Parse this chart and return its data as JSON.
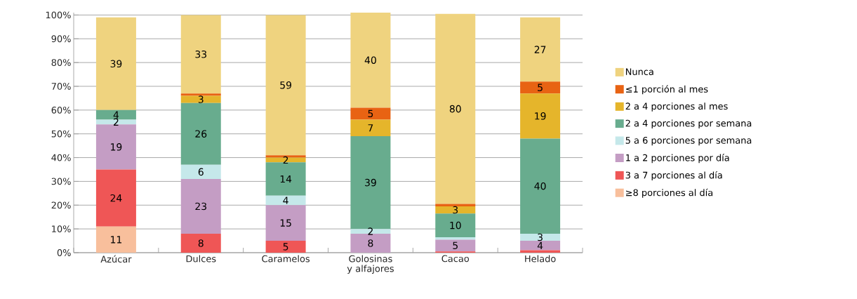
{
  "chart_data": {
    "type": "bar",
    "stacked": true,
    "categories": [
      "Azúcar",
      "Dulces",
      "Caramelos",
      "Golosinas y alfajores",
      "Cacao",
      "Helado"
    ],
    "ylim": [
      0,
      101
    ],
    "yticks": [
      {
        "value": 0,
        "label": "0%"
      },
      {
        "value": 10,
        "label": "10%"
      },
      {
        "value": 20,
        "label": "20%"
      },
      {
        "value": 30,
        "label": "30%"
      },
      {
        "value": 40,
        "label": "40%"
      },
      {
        "value": 50,
        "label": "50%"
      },
      {
        "value": 60,
        "label": "60%"
      },
      {
        "value": 70,
        "label": "70%"
      },
      {
        "value": 80,
        "label": "80%"
      },
      {
        "value": 90,
        "label": "90%"
      },
      {
        "value": 100,
        "label": "100%"
      }
    ],
    "grid": "y",
    "legend": "right",
    "series": [
      {
        "name": "≥8 porciones al día",
        "color": "#f8bf9c",
        "values": [
          11,
          0,
          0,
          0,
          0,
          0
        ],
        "value_labels": [
          "11",
          null,
          null,
          null,
          null,
          null
        ]
      },
      {
        "name": "3 a 7 porciones al día",
        "color": "#ef5656",
        "values": [
          24,
          8,
          5,
          0,
          0.5,
          1
        ],
        "value_labels": [
          "24",
          "8",
          "5",
          null,
          null,
          null
        ]
      },
      {
        "name": "1 a 2 porciones por día",
        "color": "#c49dc4",
        "values": [
          19,
          23,
          15,
          8,
          5,
          4
        ],
        "value_labels": [
          "19",
          "23",
          "15",
          "8",
          "5",
          "4"
        ]
      },
      {
        "name": "5 a 6 porciones por semana",
        "color": "#c5e8ea",
        "values": [
          2,
          6,
          4,
          2,
          1,
          3
        ],
        "value_labels": [
          "2",
          "6",
          "4",
          "2",
          null,
          "3"
        ]
      },
      {
        "name": "2 a 4 porciones por semana",
        "color": "#68ac8e",
        "values": [
          4,
          26,
          14,
          39,
          10,
          40
        ],
        "value_labels": [
          "4",
          "26",
          "14",
          "39",
          "10",
          "40"
        ]
      },
      {
        "name": "2 a 4 porciones al mes",
        "color": "#e5b52b",
        "values": [
          0,
          3,
          2,
          7,
          3,
          19
        ],
        "value_labels": [
          null,
          "3",
          "2",
          "7",
          "3",
          "19"
        ]
      },
      {
        "name": "≤1 porción al mes",
        "color": "#e86313",
        "values": [
          0,
          1,
          1,
          5,
          1,
          5
        ],
        "value_labels": [
          null,
          null,
          null,
          "5",
          null,
          "5"
        ]
      },
      {
        "name": "Nunca",
        "color": "#efd37f",
        "values": [
          39,
          33,
          59,
          40,
          80,
          27
        ],
        "value_labels": [
          "39",
          "33",
          "59",
          "40",
          "80",
          "27"
        ]
      }
    ]
  }
}
